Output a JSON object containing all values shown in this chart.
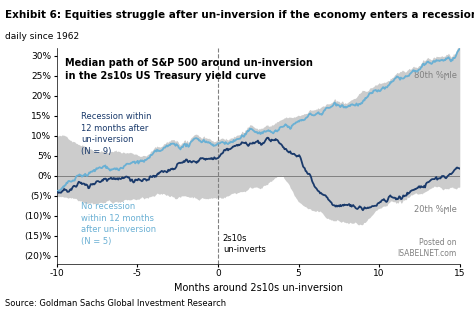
{
  "title_main": "Exhibit 6: Equities struggle after un-inversion if the economy enters a recession",
  "subtitle": "daily since 1962",
  "inner_title": "Median path of S&P 500 around un-inversion\nin the 2s10s US Treasury yield curve",
  "xlabel": "Months around 2s10s un-inversion",
  "source": "Source: Goldman Sachs Global Investment Research",
  "xlim": [
    -10,
    15
  ],
  "ylim": [
    -0.22,
    0.32
  ],
  "yticks": [
    -0.2,
    -0.15,
    -0.1,
    -0.05,
    0.0,
    0.05,
    0.1,
    0.15,
    0.2,
    0.25,
    0.3
  ],
  "ytick_labels": [
    "(20)%",
    "(15)%",
    "(10)%",
    "(5)%",
    "0%",
    "5%",
    "10%",
    "15%",
    "20%",
    "25%",
    "30%"
  ],
  "xticks": [
    -10,
    -5,
    0,
    5,
    10,
    15
  ],
  "bg_color": "#ffffff",
  "plot_bg_color": "#ffffff",
  "shade_color": "#c0c0c0",
  "recession_color": "#1a3a6b",
  "no_recession_color": "#6ab0d4",
  "annotation_recession": "Recession within\n12 months after\nun-inversion\n(N = 9)",
  "annotation_no_recession": "No recession\nwithin 12 months\nafter un-inversion\n(N = 5)",
  "annotation_uninverts": "2s10s\nun-inverts",
  "annotation_80th": "80th %ϻle",
  "annotation_20th": "20th %ϻle",
  "annotation_isabelnet": "Posted on\nISABELNET.com"
}
